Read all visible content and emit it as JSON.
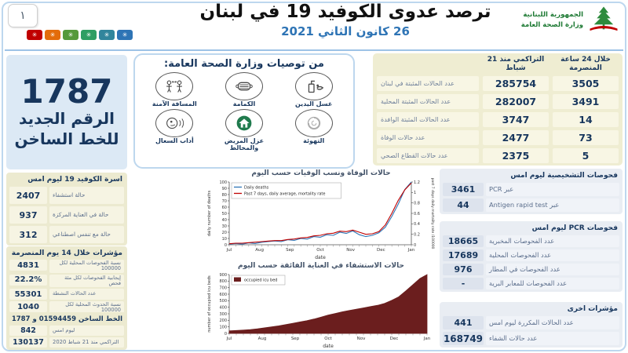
{
  "meta": {
    "slide_number": "١"
  },
  "header": {
    "title": "ترصد عدوى الكوفيد 19 في لبنان",
    "date": "26 كانون الثاني 2021",
    "logo": {
      "line1": "الجمهورية اللبنانية",
      "line2": "وزارة الصحة العامة"
    },
    "badge_colors": [
      "#C00000",
      "#E36C0A",
      "#55993B",
      "#2E9E63",
      "#31859C",
      "#2E74B5"
    ]
  },
  "hotline_box": {
    "number": "1787",
    "line1": "الرقم الجديد",
    "line2": "للخط الساخن"
  },
  "recommendations": {
    "title": "من توصيات وزارة الصحة العامة:",
    "items": [
      {
        "label": "غسل اليدين"
      },
      {
        "label": "الكمامة"
      },
      {
        "label": "المسافة الآمنة"
      },
      {
        "label": "التهوئة"
      },
      {
        "label": "عزل المريض والمخالط"
      },
      {
        "label": "أداب السعال"
      }
    ]
  },
  "beds": {
    "title": "اسرة الكوفيد 19 ليوم امس",
    "rows": [
      {
        "value": "2407",
        "label": "حالة استشفاء"
      },
      {
        "value": "937",
        "label": "حالة في العناية المركزة"
      },
      {
        "value": "312",
        "label": "حالة مع تنفس اصطناعي"
      }
    ]
  },
  "indicators14": {
    "title": "مؤشرات خلال 14 يوم المنصرمة",
    "rows": [
      {
        "value": "4831",
        "label": "نسبة الفحوصات المحلية لكل 100000"
      },
      {
        "value": "22.2%",
        "label": "إيجابية الفحوصات لكل مئة فحص"
      },
      {
        "value": "55301",
        "label": "عدد الحالات النشطة"
      },
      {
        "value": "1040",
        "label": "نسبة الحدوث المحلية لكل 100000"
      }
    ]
  },
  "hotline_stats": {
    "title": "الخط الساخن 01594459 و 1787",
    "rows": [
      {
        "value": "842",
        "label": "ليوم امس"
      },
      {
        "value": "130137",
        "label": "التراكمي منذ 21 شباط 2020"
      }
    ]
  },
  "main_table": {
    "col_24h": "خلال 24 ساعة المنصرمة",
    "col_cum": "التراكمي منذ 21 شباط",
    "rows": [
      {
        "h24": "3505",
        "cum": "285754",
        "label": "عدد الحالات المثبتة في لبنان"
      },
      {
        "h24": "3491",
        "cum": "282007",
        "label": "عدد الحالات المثبتة المحلية"
      },
      {
        "h24": "14",
        "cum": "3747",
        "label": "عدد الحالات المثبتة الوافدة"
      },
      {
        "h24": "73",
        "cum": "2477",
        "label": "عدد حالات الوفاة"
      },
      {
        "h24": "5",
        "cum": "2375",
        "label": "عدد حالات القطاع الصحي"
      }
    ]
  },
  "diagnostics": {
    "title": "فحوصات التشخيصية ليوم امس",
    "rows": [
      {
        "value": "3461",
        "label": "عبر PCR"
      },
      {
        "value": "44",
        "label": "عبر Antigen rapid test"
      }
    ]
  },
  "pcr_tests": {
    "title": "فحوصات PCR ليوم امس",
    "rows": [
      {
        "value": "18665",
        "label": "عدد الفحوصات المخبرية"
      },
      {
        "value": "17689",
        "label": "عدد الفحوصات المحلية"
      },
      {
        "value": "976",
        "label": "عدد الفحوصات في المطار"
      },
      {
        "value": "-",
        "label": "عدد الفحوصات للمعابر البرية"
      }
    ]
  },
  "other_indicators": {
    "title": "مؤشرات اخرى",
    "rows": [
      {
        "value": "441",
        "label": "عدد الحالات المكررة ليوم امس"
      },
      {
        "value": "168749",
        "label": "عدد حالات الشفاء"
      }
    ]
  },
  "chart_data": [
    {
      "type": "line",
      "title": "حالات الوفاة ونسب الوفيات حسب اليوم",
      "xlabel": "date",
      "x_ticks": [
        "Jul",
        "Aug",
        "Sep",
        "Oct",
        "Nov",
        "Dec",
        "Jan"
      ],
      "left_axis": {
        "label": "daily number of deaths",
        "min": 0,
        "max": 100,
        "ticks": [
          0,
          10,
          20,
          30,
          40,
          50,
          60,
          70,
          80,
          90,
          100
        ]
      },
      "right_axis": {
        "label": "past 7 days daily mortality rate /100000",
        "min": 0,
        "max": 1.2,
        "ticks": [
          0,
          0.2,
          0.4,
          0.6,
          0.8,
          1,
          1.2
        ]
      },
      "legend_position": "top-left",
      "grid": false,
      "series": [
        {
          "name": "Daily deaths",
          "color": "#2E75B6",
          "axis": "left",
          "values": [
            1,
            2,
            1,
            3,
            2,
            4,
            5,
            6,
            5,
            8,
            7,
            10,
            9,
            13,
            12,
            16,
            15,
            20,
            18,
            22,
            16,
            13,
            15,
            19,
            28,
            45,
            65,
            88,
            100
          ]
        },
        {
          "name": "Past 7 days, daily average, mortality rate",
          "color": "#C00000",
          "axis": "right",
          "values": [
            0.02,
            0.03,
            0.03,
            0.04,
            0.05,
            0.06,
            0.07,
            0.08,
            0.08,
            0.1,
            0.11,
            0.13,
            0.14,
            0.17,
            0.18,
            0.21,
            0.22,
            0.26,
            0.25,
            0.28,
            0.24,
            0.2,
            0.21,
            0.25,
            0.38,
            0.6,
            0.85,
            1.05,
            1.18
          ]
        }
      ]
    },
    {
      "type": "area",
      "title": "حالات الاستشفاء في العناية الفائقة حسب اليوم",
      "xlabel": "date",
      "x_ticks": [
        "Jul",
        "Aug",
        "Sep",
        "Oct",
        "Nov",
        "Dec",
        "Jan"
      ],
      "left_axis": {
        "label": "number of occupied icu beds",
        "min": 0,
        "max": 900,
        "ticks": [
          0,
          100,
          200,
          300,
          400,
          500,
          600,
          700,
          800,
          900
        ]
      },
      "legend_position": "top-left",
      "grid": false,
      "series": [
        {
          "name": "occupied icu bed",
          "color": "#6B1E1E",
          "axis": "left",
          "fill": true,
          "values": [
            40,
            45,
            50,
            58,
            70,
            85,
            100,
            115,
            135,
            155,
            175,
            195,
            220,
            250,
            280,
            305,
            330,
            350,
            370,
            390,
            410,
            430,
            460,
            505,
            560,
            650,
            745,
            840,
            900
          ]
        }
      ]
    }
  ]
}
